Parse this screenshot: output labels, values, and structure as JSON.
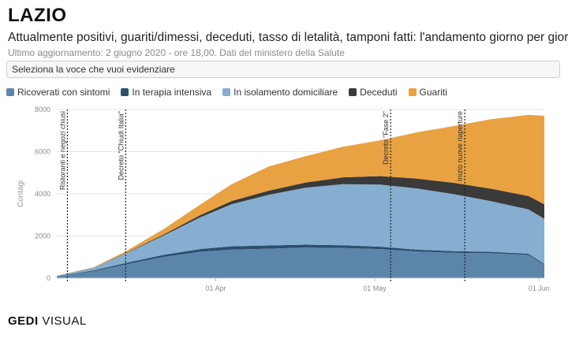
{
  "header": {
    "title": "LAZIO",
    "subtitle": "Attualmente positivi, guariti/dimessi, deceduti, tasso di letalità, tamponi fatti: l'andamento giorno per giorno",
    "updated": "Ultimo aggiornamento: 2 giugno 2020 - ore 18,00. Dati del ministero della Salute"
  },
  "selector": {
    "label": "Seleziona la voce che vuoi evidenziare"
  },
  "legend": [
    {
      "label": "Ricoverati con sintomi",
      "color": "#5b86aa"
    },
    {
      "label": "In terapia intensiva",
      "color": "#2c4f6f"
    },
    {
      "label": "In isolamento domiciliare",
      "color": "#85aed0"
    },
    {
      "label": "Deceduti",
      "color": "#3a3a3a"
    },
    {
      "label": "Guariti",
      "color": "#e8a242"
    }
  ],
  "footer": {
    "brand": "GEDI",
    "suffix": " VISUAL"
  },
  "chart_data": {
    "type": "area",
    "stacked": true,
    "ylabel": "Contagi",
    "ylim": [
      0,
      8000
    ],
    "yticks": [
      0,
      2000,
      4000,
      6000,
      8000
    ],
    "xlim": [
      "2020-03-02",
      "2020-06-02"
    ],
    "xticks": [
      {
        "date": "2020-04-01",
        "label": "01 Apr"
      },
      {
        "date": "2020-05-01",
        "label": "01 May"
      },
      {
        "date": "2020-06-01",
        "label": "01 Jun"
      }
    ],
    "grid": true,
    "legend_position": "top",
    "x": [
      "2020-03-02",
      "2020-03-09",
      "2020-03-15",
      "2020-03-22",
      "2020-03-29",
      "2020-04-04",
      "2020-04-11",
      "2020-04-18",
      "2020-04-25",
      "2020-05-02",
      "2020-05-09",
      "2020-05-16",
      "2020-05-23",
      "2020-05-30",
      "2020-06-02"
    ],
    "series": [
      {
        "name": "Ricoverati con sintomi",
        "color": "#5b86aa",
        "values": [
          80,
          330,
          650,
          1000,
          1250,
          1350,
          1400,
          1450,
          1430,
          1380,
          1260,
          1200,
          1180,
          1100,
          620
        ]
      },
      {
        "name": "In terapia intensiva",
        "color": "#2c4f6f",
        "values": [
          10,
          40,
          70,
          100,
          130,
          160,
          150,
          140,
          130,
          110,
          90,
          80,
          70,
          60,
          50
        ]
      },
      {
        "name": "In isolamento domiciliare",
        "color": "#85aed0",
        "values": [
          20,
          120,
          450,
          900,
          1500,
          2000,
          2400,
          2700,
          2900,
          2950,
          2900,
          2700,
          2400,
          2100,
          2150
        ]
      },
      {
        "name": "Deceduti",
        "color": "#3a3a3a",
        "values": [
          2,
          8,
          20,
          50,
          100,
          150,
          200,
          250,
          320,
          400,
          470,
          540,
          590,
          640,
          680
        ]
      },
      {
        "name": "Guariti",
        "color": "#e8a242",
        "values": [
          5,
          20,
          80,
          250,
          500,
          800,
          1150,
          1250,
          1450,
          1700,
          2200,
          2700,
          3300,
          3850,
          4200
        ]
      }
    ],
    "annotations": [
      {
        "date": "2020-03-04",
        "label": "Ristoranti e negozi chiusi"
      },
      {
        "date": "2020-03-15",
        "label": "Decreto \"Chiudi Italia\""
      },
      {
        "date": "2020-05-04",
        "label": "Decreto \"Fase 2\""
      },
      {
        "date": "2020-05-18",
        "label": "Inizio nuove riaperture"
      }
    ]
  }
}
